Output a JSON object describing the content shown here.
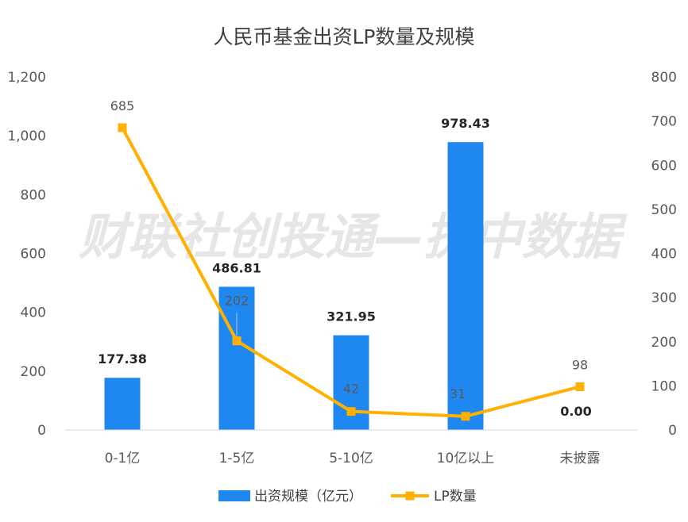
{
  "chart_data": {
    "type": "bar",
    "title": "人民币基金出资LP数量及规模",
    "categories": [
      "0-1亿",
      "1-5亿",
      "5-10亿",
      "10亿以上",
      "未披露"
    ],
    "series": [
      {
        "name": "出资规模（亿元）",
        "type": "bar",
        "axis": "left",
        "color": "#1E88F0",
        "values": [
          177.38,
          486.81,
          321.95,
          978.43,
          0.0
        ],
        "labels": [
          "177.38",
          "486.81",
          "321.95",
          "978.43",
          "0.00"
        ]
      },
      {
        "name": "LP数量",
        "type": "line",
        "axis": "right",
        "color": "#FFB000",
        "marker": "square",
        "values": [
          685,
          202,
          42,
          31,
          98
        ],
        "labels": [
          "685",
          "202",
          "42",
          "31",
          "98"
        ]
      }
    ],
    "y_left": {
      "min": 0,
      "max": 1200,
      "ticks": [
        "0",
        "200",
        "400",
        "600",
        "800",
        "1,000",
        "1,200"
      ]
    },
    "y_right": {
      "min": 0,
      "max": 800,
      "ticks": [
        "0",
        "100",
        "200",
        "300",
        "400",
        "500",
        "600",
        "700",
        "800"
      ]
    },
    "grid": false,
    "legend": "bottom"
  },
  "watermark": "财联社创投通—执中数据"
}
